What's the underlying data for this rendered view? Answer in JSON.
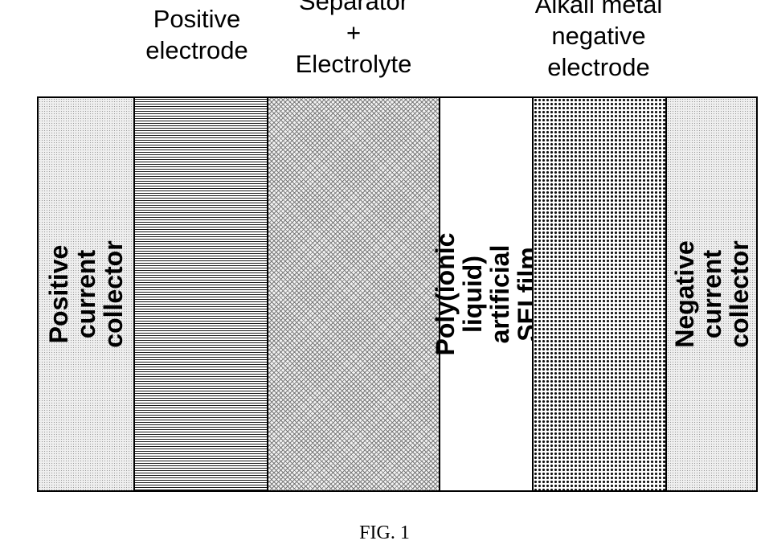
{
  "top_labels": {
    "positive_electrode": "Positive\nelectrode",
    "separator": "Separator\n+\nElectrolyte",
    "alkali": "Alkali metal\nnegative\nelectrode"
  },
  "layers": {
    "positive_current_collector": "Positive current\ncollector",
    "sei_film": "Poly(ionic liquid)\nartificial SEI film",
    "negative_current_collector": "Negative current\ncollector"
  },
  "caption": "FIG. 1"
}
